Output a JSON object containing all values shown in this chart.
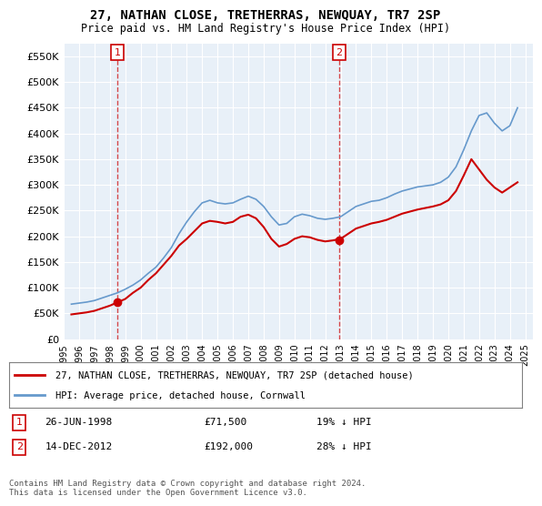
{
  "title": "27, NATHAN CLOSE, TRETHERRAS, NEWQUAY, TR7 2SP",
  "subtitle": "Price paid vs. HM Land Registry's House Price Index (HPI)",
  "legend_line1": "27, NATHAN CLOSE, TRETHERRAS, NEWQUAY, TR7 2SP (detached house)",
  "legend_line2": "HPI: Average price, detached house, Cornwall",
  "annotation1_label": "1",
  "annotation1_date": "26-JUN-1998",
  "annotation1_price": "£71,500",
  "annotation1_hpi": "19% ↓ HPI",
  "annotation2_label": "2",
  "annotation2_date": "14-DEC-2012",
  "annotation2_price": "£192,000",
  "annotation2_hpi": "28% ↓ HPI",
  "footer": "Contains HM Land Registry data © Crown copyright and database right 2024.\nThis data is licensed under the Open Government Licence v3.0.",
  "price_color": "#cc0000",
  "hpi_color": "#6699cc",
  "annotation_box_color": "#cc0000",
  "background_color": "#e8f0f8",
  "ylim": [
    0,
    575000
  ],
  "yticks": [
    0,
    50000,
    100000,
    150000,
    200000,
    250000,
    300000,
    350000,
    400000,
    450000,
    500000,
    550000
  ],
  "hpi_data": {
    "years": [
      1995.5,
      1996.0,
      1996.5,
      1997.0,
      1997.5,
      1998.0,
      1998.5,
      1999.0,
      1999.5,
      2000.0,
      2000.5,
      2001.0,
      2001.5,
      2002.0,
      2002.5,
      2003.0,
      2003.5,
      2004.0,
      2004.5,
      2005.0,
      2005.5,
      2006.0,
      2006.5,
      2007.0,
      2007.5,
      2008.0,
      2008.5,
      2009.0,
      2009.5,
      2010.0,
      2010.5,
      2011.0,
      2011.5,
      2012.0,
      2012.5,
      2013.0,
      2013.5,
      2014.0,
      2014.5,
      2015.0,
      2015.5,
      2016.0,
      2016.5,
      2017.0,
      2017.5,
      2018.0,
      2018.5,
      2019.0,
      2019.5,
      2020.0,
      2020.5,
      2021.0,
      2021.5,
      2022.0,
      2022.5,
      2023.0,
      2023.5,
      2024.0,
      2024.5
    ],
    "values": [
      68000,
      70000,
      72000,
      75000,
      80000,
      85000,
      90000,
      97000,
      105000,
      115000,
      128000,
      140000,
      158000,
      178000,
      205000,
      228000,
      248000,
      265000,
      270000,
      265000,
      263000,
      265000,
      272000,
      278000,
      272000,
      258000,
      238000,
      222000,
      225000,
      238000,
      243000,
      240000,
      235000,
      233000,
      235000,
      238000,
      248000,
      258000,
      263000,
      268000,
      270000,
      275000,
      282000,
      288000,
      292000,
      296000,
      298000,
      300000,
      305000,
      315000,
      335000,
      368000,
      405000,
      435000,
      440000,
      420000,
      405000,
      415000,
      450000
    ]
  },
  "price_data": {
    "years": [
      1995.5,
      1996.0,
      1996.5,
      1997.0,
      1997.5,
      1998.0,
      1998.5,
      1999.0,
      1999.5,
      2000.0,
      2000.5,
      2001.0,
      2001.5,
      2002.0,
      2002.5,
      2003.0,
      2003.5,
      2004.0,
      2004.5,
      2005.0,
      2005.5,
      2006.0,
      2006.5,
      2007.0,
      2007.5,
      2008.0,
      2008.5,
      2009.0,
      2009.5,
      2010.0,
      2010.5,
      2011.0,
      2011.5,
      2012.0,
      2012.5,
      2013.0,
      2013.5,
      2014.0,
      2014.5,
      2015.0,
      2015.5,
      2016.0,
      2016.5,
      2017.0,
      2017.5,
      2018.0,
      2018.5,
      2019.0,
      2019.5,
      2020.0,
      2020.5,
      2021.0,
      2021.5,
      2022.0,
      2022.5,
      2023.0,
      2023.5,
      2024.0,
      2024.5
    ],
    "values": [
      48000,
      50000,
      52000,
      55000,
      60000,
      65000,
      71500,
      78000,
      90000,
      100000,
      115000,
      128000,
      145000,
      162000,
      182000,
      195000,
      210000,
      225000,
      230000,
      228000,
      225000,
      228000,
      238000,
      242000,
      235000,
      218000,
      195000,
      180000,
      185000,
      195000,
      200000,
      198000,
      193000,
      190000,
      192000,
      195000,
      205000,
      215000,
      220000,
      225000,
      228000,
      232000,
      238000,
      244000,
      248000,
      252000,
      255000,
      258000,
      262000,
      270000,
      288000,
      318000,
      350000,
      330000,
      310000,
      295000,
      285000,
      295000,
      305000
    ]
  },
  "sale1_x": 1998.5,
  "sale1_y": 71500,
  "sale2_x": 2012.917,
  "sale2_y": 192000,
  "xmin": 1995.0,
  "xmax": 2025.5
}
